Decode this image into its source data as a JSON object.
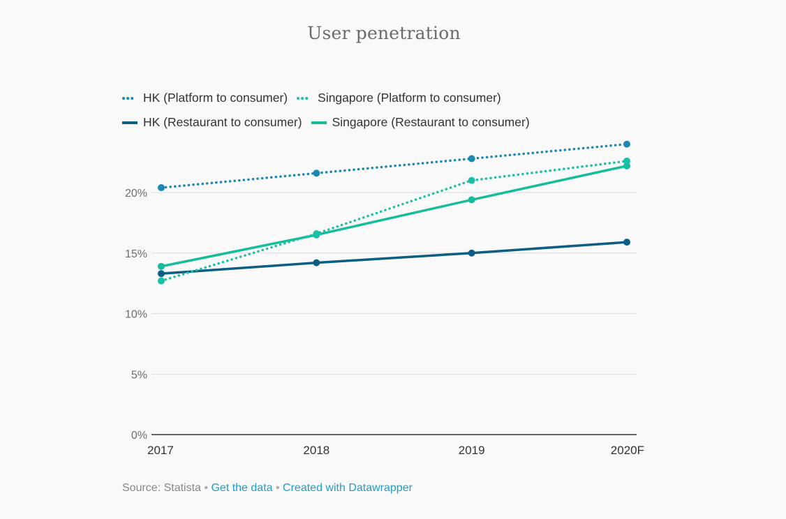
{
  "chart_data": {
    "type": "line",
    "title": "User penetration",
    "categories": [
      "2017",
      "2018",
      "2019",
      "2020F"
    ],
    "y_ticks": [
      {
        "value": 0,
        "label": "0%"
      },
      {
        "value": 5,
        "label": "5%"
      },
      {
        "value": 10,
        "label": "10%"
      },
      {
        "value": 15,
        "label": "15%"
      },
      {
        "value": 20,
        "label": "20%"
      }
    ],
    "ylim": [
      0,
      25
    ],
    "grid": true,
    "legend_position": "top-left",
    "series": [
      {
        "name": "HK (Platform to consumer)",
        "color": "#1a87b5",
        "style": "dotted",
        "values": [
          20.4,
          21.6,
          22.8,
          24.0
        ]
      },
      {
        "name": "Singapore (Platform to consumer)",
        "color": "#1bbfa5",
        "style": "dotted",
        "values": [
          12.7,
          16.6,
          21.0,
          22.6
        ]
      },
      {
        "name": "HK (Restaurant to consumer)",
        "color": "#0d5e85",
        "style": "solid",
        "values": [
          13.3,
          14.2,
          15.0,
          15.9
        ]
      },
      {
        "name": "Singapore (Restaurant to consumer)",
        "color": "#16bd9c",
        "style": "solid",
        "values": [
          13.9,
          16.5,
          19.4,
          22.2
        ]
      }
    ]
  },
  "footer": {
    "source": "Source: Statista",
    "separator": "•",
    "get_data": "Get the data",
    "created_with": "Created with Datawrapper"
  }
}
